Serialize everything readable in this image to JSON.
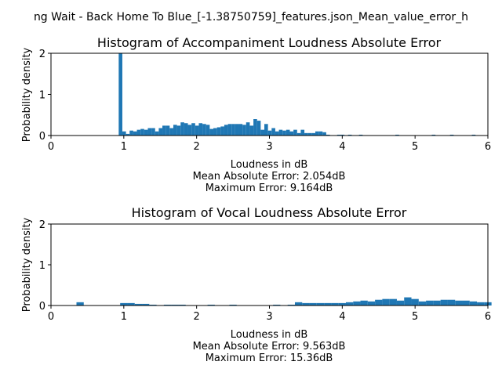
{
  "figure": {
    "suptitle": "ng Wait - Back Home To Blue_[-1.38750759]_features.json_Mean_value_error_h"
  },
  "colors": {
    "bar": "#1f77b4",
    "axis": "#000000",
    "background": "#ffffff"
  },
  "chart_data": [
    {
      "type": "bar",
      "title": "Histogram of Accompaniment Loudness Absolute Error",
      "xlabel": "Loudness in dB",
      "ylabel": "Probability density",
      "stats": [
        "Mean Absolute Error: 2.054dB",
        "Maximum Error: 9.164dB"
      ],
      "xlim": [
        0,
        6
      ],
      "ylim": [
        0,
        2
      ],
      "xticks": [
        "0",
        "1",
        "2",
        "3",
        "4",
        "5",
        "6"
      ],
      "yticks": [
        "0",
        "1",
        "2"
      ],
      "grid": false,
      "bin_width": 0.05,
      "bins": [
        [
          0.93,
          2.0
        ],
        [
          0.98,
          0.1
        ],
        [
          1.03,
          0.04
        ],
        [
          1.08,
          0.12
        ],
        [
          1.13,
          0.1
        ],
        [
          1.18,
          0.14
        ],
        [
          1.23,
          0.16
        ],
        [
          1.28,
          0.14
        ],
        [
          1.33,
          0.18
        ],
        [
          1.38,
          0.18
        ],
        [
          1.43,
          0.1
        ],
        [
          1.48,
          0.18
        ],
        [
          1.53,
          0.24
        ],
        [
          1.58,
          0.24
        ],
        [
          1.63,
          0.18
        ],
        [
          1.68,
          0.26
        ],
        [
          1.73,
          0.24
        ],
        [
          1.78,
          0.32
        ],
        [
          1.83,
          0.3
        ],
        [
          1.88,
          0.26
        ],
        [
          1.93,
          0.3
        ],
        [
          1.98,
          0.24
        ],
        [
          2.03,
          0.3
        ],
        [
          2.08,
          0.28
        ],
        [
          2.13,
          0.26
        ],
        [
          2.18,
          0.16
        ],
        [
          2.23,
          0.18
        ],
        [
          2.28,
          0.2
        ],
        [
          2.33,
          0.22
        ],
        [
          2.38,
          0.26
        ],
        [
          2.43,
          0.28
        ],
        [
          2.48,
          0.28
        ],
        [
          2.53,
          0.28
        ],
        [
          2.58,
          0.28
        ],
        [
          2.63,
          0.26
        ],
        [
          2.68,
          0.32
        ],
        [
          2.73,
          0.24
        ],
        [
          2.78,
          0.4
        ],
        [
          2.83,
          0.36
        ],
        [
          2.88,
          0.14
        ],
        [
          2.93,
          0.28
        ],
        [
          2.98,
          0.12
        ],
        [
          3.03,
          0.18
        ],
        [
          3.08,
          0.1
        ],
        [
          3.13,
          0.14
        ],
        [
          3.18,
          0.12
        ],
        [
          3.23,
          0.14
        ],
        [
          3.28,
          0.1
        ],
        [
          3.33,
          0.14
        ],
        [
          3.38,
          0.06
        ],
        [
          3.43,
          0.14
        ],
        [
          3.48,
          0.06
        ],
        [
          3.53,
          0.06
        ],
        [
          3.58,
          0.06
        ],
        [
          3.63,
          0.1
        ],
        [
          3.68,
          0.1
        ],
        [
          3.73,
          0.08
        ],
        [
          3.78,
          0.02
        ],
        [
          3.93,
          0.02
        ],
        [
          3.98,
          0.02
        ],
        [
          4.08,
          0.02
        ],
        [
          4.23,
          0.02
        ],
        [
          4.73,
          0.02
        ],
        [
          5.23,
          0.02
        ],
        [
          5.48,
          0.02
        ],
        [
          5.78,
          0.02
        ]
      ]
    },
    {
      "type": "bar",
      "title": "Histogram of Vocal Loudness Absolute Error",
      "xlabel": "Loudness in dB",
      "ylabel": "Probability density",
      "stats": [
        "Mean Absolute Error: 9.563dB",
        "Maximum Error: 15.36dB"
      ],
      "xlim": [
        0,
        6
      ],
      "ylim": [
        0,
        2
      ],
      "xticks": [
        "0",
        "1",
        "2",
        "3",
        "4",
        "5",
        "6"
      ],
      "yticks": [
        "0",
        "1",
        "2"
      ],
      "grid": false,
      "bin_width": 0.1,
      "bins": [
        [
          0.35,
          0.08
        ],
        [
          0.95,
          0.06
        ],
        [
          1.05,
          0.06
        ],
        [
          1.15,
          0.04
        ],
        [
          1.25,
          0.04
        ],
        [
          1.35,
          0.02
        ],
        [
          1.55,
          0.02
        ],
        [
          1.65,
          0.02
        ],
        [
          1.75,
          0.02
        ],
        [
          2.15,
          0.02
        ],
        [
          2.45,
          0.02
        ],
        [
          3.05,
          0.02
        ],
        [
          3.25,
          0.02
        ],
        [
          3.35,
          0.08
        ],
        [
          3.45,
          0.06
        ],
        [
          3.55,
          0.06
        ],
        [
          3.65,
          0.06
        ],
        [
          3.75,
          0.06
        ],
        [
          3.85,
          0.06
        ],
        [
          3.95,
          0.06
        ],
        [
          4.05,
          0.08
        ],
        [
          4.15,
          0.1
        ],
        [
          4.25,
          0.12
        ],
        [
          4.35,
          0.1
        ],
        [
          4.45,
          0.14
        ],
        [
          4.55,
          0.16
        ],
        [
          4.65,
          0.16
        ],
        [
          4.75,
          0.12
        ],
        [
          4.85,
          0.2
        ],
        [
          4.95,
          0.16
        ],
        [
          5.05,
          0.1
        ],
        [
          5.15,
          0.12
        ],
        [
          5.25,
          0.12
        ],
        [
          5.35,
          0.14
        ],
        [
          5.45,
          0.14
        ],
        [
          5.55,
          0.12
        ],
        [
          5.65,
          0.12
        ],
        [
          5.75,
          0.1
        ],
        [
          5.85,
          0.08
        ],
        [
          5.95,
          0.08
        ]
      ]
    }
  ]
}
